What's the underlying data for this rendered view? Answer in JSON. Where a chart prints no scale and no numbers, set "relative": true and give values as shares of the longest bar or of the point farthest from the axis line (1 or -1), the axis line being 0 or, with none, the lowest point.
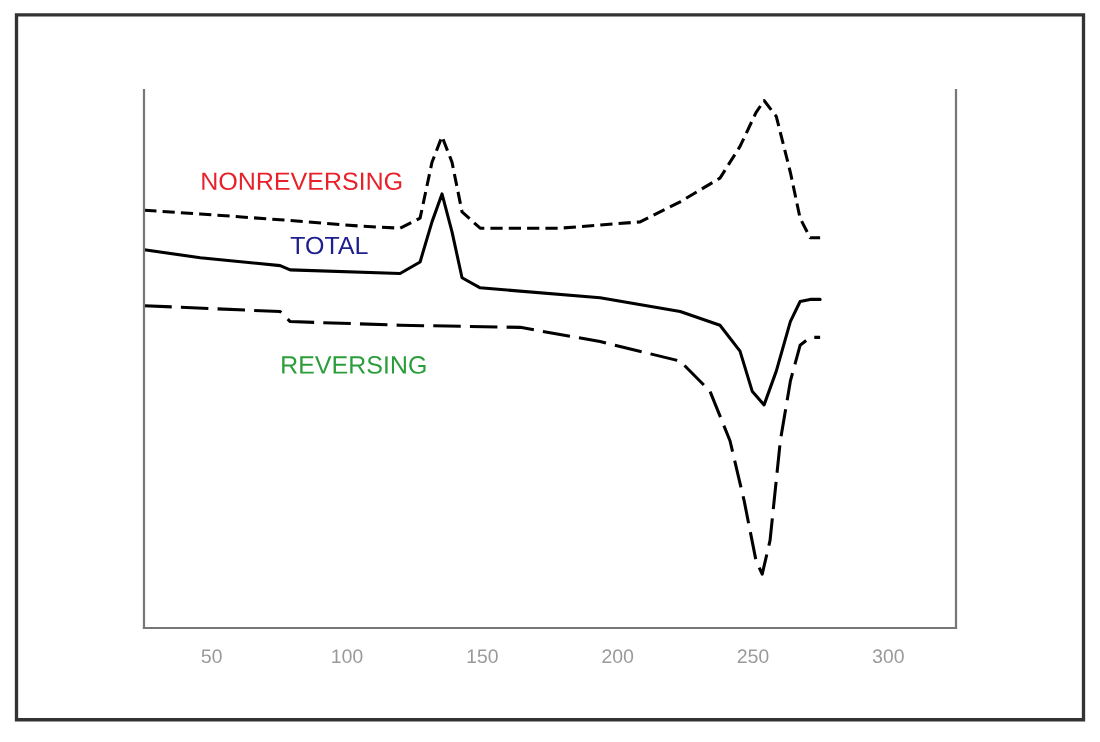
{
  "chart_data": {
    "type": "line",
    "relative": true,
    "xlim": [
      25,
      325
    ],
    "xticks": [
      50,
      100,
      150,
      200,
      250,
      300
    ],
    "series": [
      {
        "name": "NONREVERSING",
        "color": "#000000",
        "line_style": "dashed",
        "x": [
          25.1,
          45.8,
          75.3,
          104.9,
          119.6,
          127.0,
          131.4,
          135.1,
          138.8,
          142.5,
          149.2,
          178.7,
          208.3,
          223.1,
          237.8,
          245.2,
          251.1,
          254.1,
          258.6,
          263.8,
          267.4,
          271.1,
          274.8
        ],
        "values": [
          0.792,
          0.785,
          0.774,
          0.762,
          0.758,
          0.777,
          0.883,
          0.932,
          0.883,
          0.789,
          0.758,
          0.758,
          0.77,
          0.808,
          0.853,
          0.913,
          0.977,
          1.0,
          0.97,
          0.864,
          0.777,
          0.74,
          0.74
        ]
      },
      {
        "name": "TOTAL",
        "color": "#000000",
        "line_style": "solid",
        "x": [
          25.1,
          45.8,
          75.3,
          79.0,
          119.6,
          127.0,
          131.4,
          135.1,
          138.8,
          142.5,
          149.2,
          193.5,
          223.1,
          237.8,
          245.2,
          249.7,
          254.1,
          258.6,
          263.8,
          267.4,
          271.1,
          274.8
        ],
        "values": [
          0.717,
          0.702,
          0.687,
          0.679,
          0.672,
          0.694,
          0.77,
          0.823,
          0.751,
          0.664,
          0.645,
          0.626,
          0.6,
          0.574,
          0.525,
          0.449,
          0.423,
          0.487,
          0.581,
          0.619,
          0.623,
          0.623
        ]
      },
      {
        "name": "REVERSING",
        "color": "#000000",
        "line_style": "longdash",
        "x": [
          25.1,
          75.3,
          79.0,
          119.6,
          164.0,
          193.5,
          223.1,
          234.1,
          241.5,
          246.7,
          251.1,
          253.4,
          256.3,
          260.1,
          263.8,
          267.4,
          271.1,
          274.8
        ],
        "values": [
          0.611,
          0.6,
          0.581,
          0.574,
          0.57,
          0.543,
          0.506,
          0.449,
          0.355,
          0.242,
          0.128,
          0.102,
          0.166,
          0.355,
          0.468,
          0.536,
          0.551,
          0.551
        ]
      }
    ]
  }
}
